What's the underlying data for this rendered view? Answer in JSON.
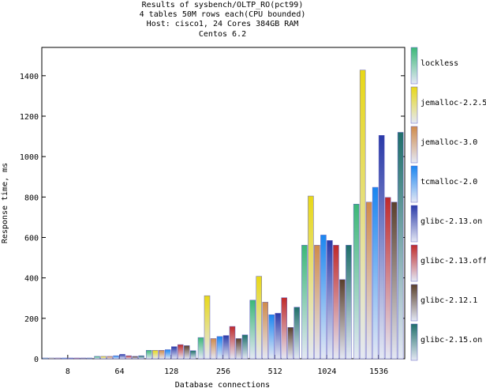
{
  "chart_data": {
    "type": "bar",
    "title": [
      "Results of sysbench/OLTP_RO(pct99)",
      "4 tables 50M rows each(CPU bounded)",
      "Host: cisco1, 24 Cores 384GB RAM",
      "Centos 6.2"
    ],
    "xlabel": "Database connections",
    "ylabel": "Response time, ms",
    "ylim": [
      0,
      1540
    ],
    "yticks": [
      0,
      200,
      400,
      600,
      800,
      1000,
      1200,
      1400
    ],
    "categories": [
      "8",
      "64",
      "128",
      "256",
      "512",
      "1024",
      "1536"
    ],
    "grid": false,
    "legend_position": "right",
    "series": [
      {
        "name": "lockless",
        "color": "#3cb878",
        "values": [
          2,
          12,
          42,
          105,
          290,
          562,
          765
        ]
      },
      {
        "name": "jemalloc-2.2.5",
        "color": "#e8d817",
        "values": [
          2,
          12,
          42,
          312,
          408,
          805,
          1428
        ]
      },
      {
        "name": "jemalloc-3.0",
        "color": "#d08b4a",
        "values": [
          2,
          12,
          42,
          100,
          280,
          562,
          775
        ]
      },
      {
        "name": "tcmalloc-2.0",
        "color": "#1a86f0",
        "values": [
          2,
          15,
          45,
          110,
          218,
          612,
          848
        ]
      },
      {
        "name": "glibc-2.13.on",
        "color": "#2a3aa8",
        "values": [
          3,
          22,
          60,
          115,
          225,
          585,
          1105
        ]
      },
      {
        "name": "glibc-2.13.off",
        "color": "#c02a2a",
        "values": [
          2,
          15,
          70,
          160,
          302,
          562,
          798
        ]
      },
      {
        "name": "glibc-2.12.1",
        "color": "#5a3f2a",
        "values": [
          2,
          12,
          65,
          100,
          155,
          392,
          775
        ]
      },
      {
        "name": "glibc-2.15.on",
        "color": "#1f6f6a",
        "values": [
          2,
          15,
          40,
          118,
          255,
          562,
          1120
        ]
      }
    ]
  }
}
